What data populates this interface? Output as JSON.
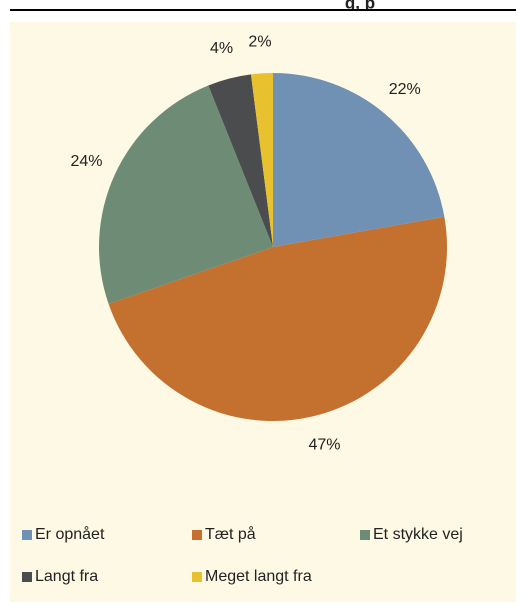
{
  "chart_data": {
    "type": "pie",
    "title": "g, p",
    "categories": [
      "Er opnået",
      "Tæt på",
      "Et stykke vej",
      "Langt fra",
      "Meget langt fra"
    ],
    "values": [
      22,
      47,
      24,
      4,
      2
    ],
    "value_labels": [
      "22%",
      "47%",
      "24%",
      "4%",
      "2%"
    ],
    "colors": [
      "#7191b4",
      "#c4702f",
      "#6e8b76",
      "#4b4c4e",
      "#e8c12f"
    ],
    "legend": "bottom"
  }
}
